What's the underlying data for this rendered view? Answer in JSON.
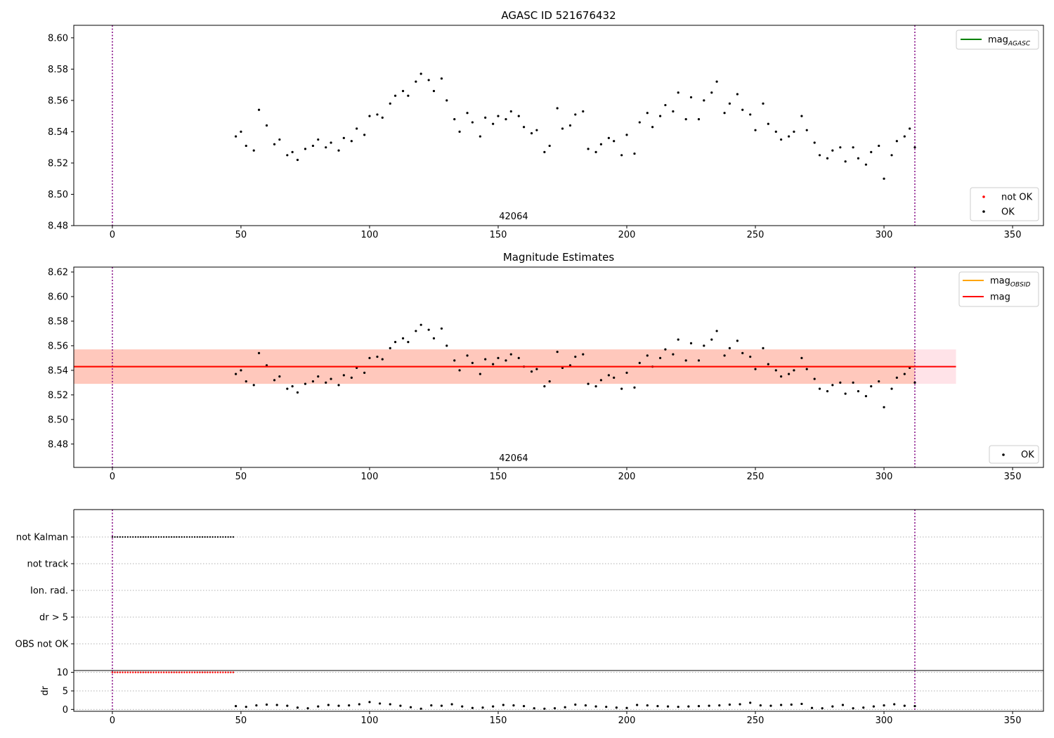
{
  "chart_data": [
    {
      "type": "scatter",
      "title": "AGASC ID 521676432",
      "obsid_label": "42064",
      "xlim": [
        -15,
        362
      ],
      "ylim": [
        8.48,
        8.608
      ],
      "xticks": [
        0,
        50,
        100,
        150,
        200,
        250,
        300,
        350
      ],
      "yticks": [
        8.48,
        8.5,
        8.52,
        8.54,
        8.56,
        8.58,
        8.6
      ],
      "vlines": [
        0,
        312
      ],
      "legend_lines": [
        {
          "label": "mag",
          "subscript": "AGASC",
          "color": "#008000"
        }
      ],
      "legend_points": [
        {
          "label": "not OK",
          "color": "#ff0000"
        },
        {
          "label": "OK",
          "color": "#000000"
        }
      ],
      "series": [
        {
          "name": "OK",
          "color": "#000000",
          "x": [
            48,
            50,
            52,
            55,
            57,
            60,
            63,
            65,
            68,
            70,
            72,
            75,
            78,
            80,
            83,
            85,
            88,
            90,
            93,
            95,
            98,
            100,
            103,
            105,
            108,
            110,
            113,
            115,
            118,
            120,
            123,
            125,
            128,
            130,
            133,
            135,
            138,
            140,
            143,
            145,
            148,
            150,
            153,
            155,
            158,
            160,
            163,
            165,
            168,
            170,
            173,
            175,
            178,
            180,
            183,
            185,
            188,
            190,
            193,
            195,
            198,
            200,
            203,
            205,
            208,
            210,
            213,
            215,
            218,
            220,
            223,
            225,
            228,
            230,
            233,
            235,
            238,
            240,
            243,
            245,
            248,
            250,
            253,
            255,
            258,
            260,
            263,
            265,
            268,
            270,
            273,
            275,
            278,
            280,
            283,
            285,
            288,
            290,
            293,
            295,
            298,
            300,
            303,
            305,
            308,
            310,
            312
          ],
          "y": [
            8.537,
            8.54,
            8.531,
            8.528,
            8.554,
            8.544,
            8.532,
            8.535,
            8.525,
            8.527,
            8.522,
            8.529,
            8.531,
            8.535,
            8.53,
            8.533,
            8.528,
            8.536,
            8.534,
            8.542,
            8.538,
            8.55,
            8.551,
            8.549,
            8.558,
            8.563,
            8.566,
            8.563,
            8.572,
            8.577,
            8.573,
            8.566,
            8.574,
            8.56,
            8.548,
            8.54,
            8.552,
            8.546,
            8.537,
            8.549,
            8.545,
            8.55,
            8.548,
            8.553,
            8.55,
            8.543,
            8.539,
            8.541,
            8.527,
            8.531,
            8.555,
            8.542,
            8.544,
            8.551,
            8.553,
            8.529,
            8.527,
            8.532,
            8.536,
            8.534,
            8.525,
            8.538,
            8.526,
            8.546,
            8.552,
            8.543,
            8.55,
            8.557,
            8.553,
            8.565,
            8.548,
            8.562,
            8.548,
            8.56,
            8.565,
            8.572,
            8.552,
            8.558,
            8.564,
            8.554,
            8.551,
            8.541,
            8.558,
            8.545,
            8.54,
            8.535,
            8.537,
            8.54,
            8.55,
            8.541,
            8.533,
            8.525,
            8.523,
            8.528,
            8.53,
            8.521,
            8.53,
            8.523,
            8.519,
            8.527,
            8.531,
            8.51,
            8.525,
            8.534,
            8.537,
            8.542,
            8.53
          ]
        },
        {
          "name": "not OK",
          "color": "#ff0000",
          "x": [],
          "y": []
        }
      ]
    },
    {
      "type": "scatter",
      "title": "Magnitude Estimates",
      "obsid_label": "42064",
      "xlim": [
        -15,
        362
      ],
      "ylim": [
        8.461,
        8.624
      ],
      "xticks": [
        0,
        50,
        100,
        150,
        200,
        250,
        300,
        350
      ],
      "yticks": [
        8.48,
        8.5,
        8.52,
        8.54,
        8.56,
        8.58,
        8.6,
        8.62
      ],
      "vlines": [
        0,
        312
      ],
      "mag": 8.543,
      "mag_band": [
        8.529,
        8.557
      ],
      "mag_x_range": [
        -15,
        328
      ],
      "mag_obsid": 8.543,
      "mag_obsid_band": [
        8.529,
        8.557
      ],
      "mag_obsid_x_range": [
        -15,
        312
      ],
      "legend_lines": [
        {
          "label": "mag",
          "subscript": "OBSID",
          "color": "#ffa500"
        },
        {
          "label": "mag",
          "subscript": "",
          "color": "#ff0000"
        }
      ],
      "legend_points": [
        {
          "label": "OK",
          "color": "#000000"
        }
      ],
      "series_ref": "same OK points as the AGASC ID panel"
    },
    {
      "type": "scatter",
      "title": "",
      "xlim": [
        -15,
        362
      ],
      "flag_rows": [
        "not Kalman",
        "not track",
        "Ion. rad.",
        "dr > 5",
        "OBS not OK"
      ],
      "flag_runs": [
        {
          "flag": "not Kalman",
          "x_start": 0,
          "x_end": 47,
          "color": "#000000"
        }
      ],
      "vlines": [
        0,
        312
      ]
    },
    {
      "type": "scatter",
      "title": "",
      "ylabel": "dr",
      "xlim": [
        -15,
        362
      ],
      "ylim": [
        -0.5,
        10.5
      ],
      "xticks": [
        0,
        50,
        100,
        150,
        200,
        250,
        300,
        350
      ],
      "yticks": [
        0,
        5,
        10
      ],
      "vlines": [
        0,
        312
      ],
      "capped_run": {
        "x_start": 0,
        "x_end": 47,
        "value": 10,
        "color": "#ff0000"
      },
      "series": [
        {
          "name": "dr",
          "color": "#000000",
          "x": [
            48,
            52,
            56,
            60,
            64,
            68,
            72,
            76,
            80,
            84,
            88,
            92,
            96,
            100,
            104,
            108,
            112,
            116,
            120,
            124,
            128,
            132,
            136,
            140,
            144,
            148,
            152,
            156,
            160,
            164,
            168,
            172,
            176,
            180,
            184,
            188,
            192,
            196,
            200,
            204,
            208,
            212,
            216,
            220,
            224,
            228,
            232,
            236,
            240,
            244,
            248,
            252,
            256,
            260,
            264,
            268,
            272,
            276,
            280,
            284,
            288,
            292,
            296,
            300,
            304,
            308,
            312
          ],
          "y": [
            0.9,
            0.7,
            1.1,
            1.3,
            1.2,
            1.0,
            0.5,
            0.3,
            0.8,
            1.2,
            1.0,
            1.1,
            1.4,
            2.0,
            1.6,
            1.4,
            1.0,
            0.6,
            0.2,
            1.1,
            1.0,
            1.4,
            0.8,
            0.4,
            0.5,
            0.8,
            1.2,
            1.1,
            0.9,
            0.3,
            0.2,
            0.3,
            0.6,
            1.3,
            1.1,
            0.8,
            0.7,
            0.5,
            0.4,
            1.2,
            1.1,
            0.9,
            0.8,
            0.7,
            0.8,
            0.9,
            1.0,
            1.1,
            1.3,
            1.4,
            1.8,
            1.1,
            1.0,
            1.2,
            1.3,
            1.5,
            0.4,
            0.3,
            0.8,
            1.2,
            0.3,
            0.5,
            0.8,
            1.1,
            1.4,
            1.0,
            0.9
          ]
        }
      ]
    }
  ]
}
